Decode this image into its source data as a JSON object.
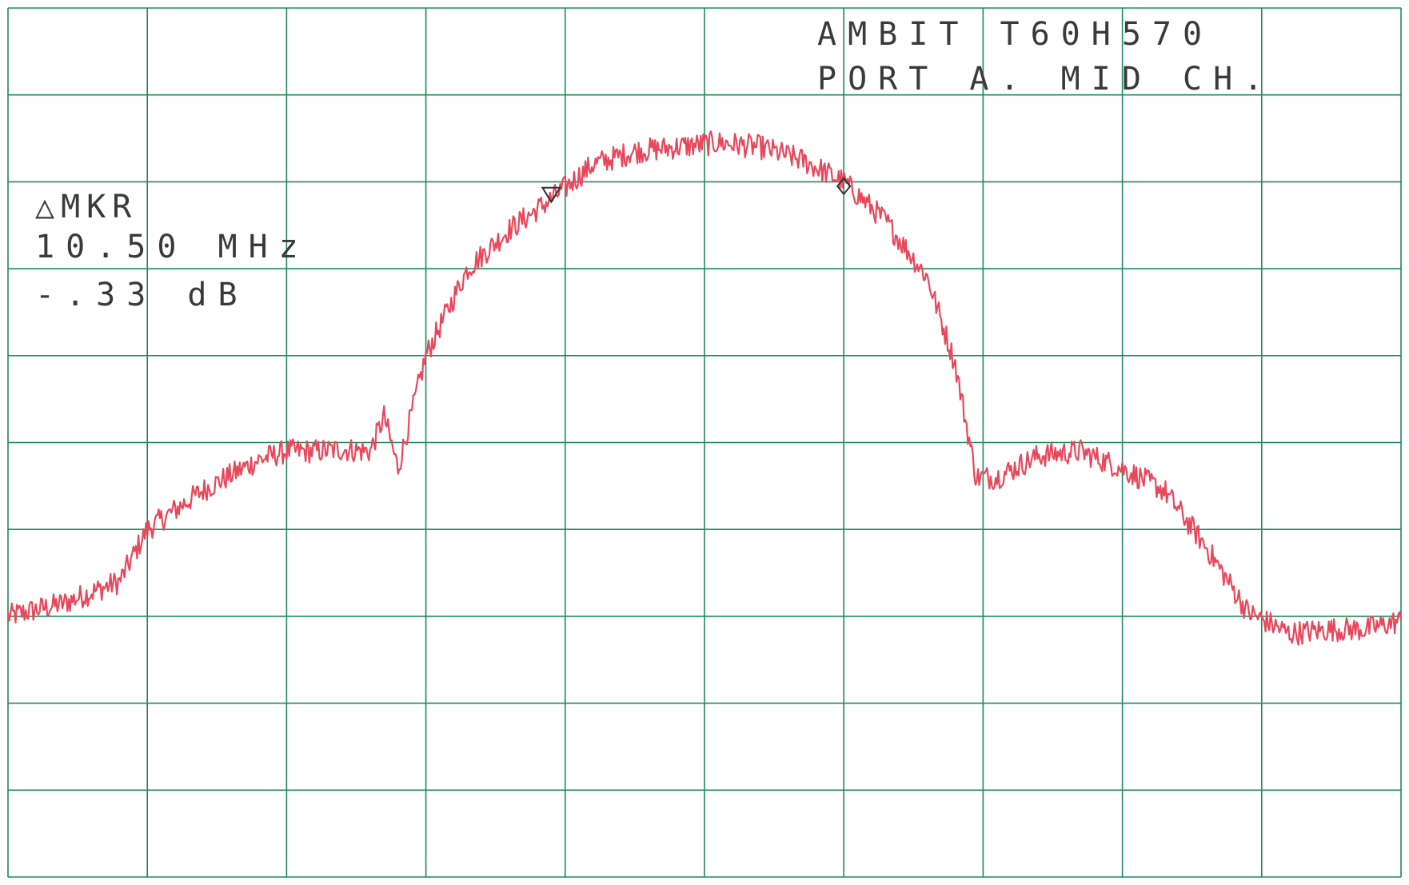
{
  "header": {
    "line1": "AMBIT T60H570",
    "line2": "PORT A. MID CH."
  },
  "marker_readout": {
    "label": "△MKR",
    "frequency": "10.50 MHz",
    "level": "-.33 dB"
  },
  "colors": {
    "grid": "#1f8a5c",
    "trace": "#e8485c",
    "text": "#3a3a3a",
    "paper": "#ffffff"
  },
  "chart_data": {
    "type": "line",
    "title": "AMBIT T60H570 PORT A. MID CH.",
    "xlabel": "",
    "ylabel": "",
    "grid": true,
    "grid_divisions": {
      "x": 10,
      "y": 10
    },
    "xlim": [
      0,
      10
    ],
    "ylim": [
      0,
      10
    ],
    "units": "screen divisions",
    "series": [
      {
        "x": [
          0,
          0.4,
          0.8,
          1.0,
          1.4,
          1.8,
          2.0,
          2.2,
          2.4,
          2.6,
          2.7,
          2.8,
          3.0,
          3.3,
          3.6,
          3.9,
          4.2,
          4.5,
          4.8,
          5.1,
          5.4,
          5.7,
          6.0,
          6.3,
          6.6,
          6.8,
          6.95,
          7.1,
          7.4,
          7.7,
          8.0,
          8.3,
          8.6,
          8.9,
          9.2,
          9.5,
          9.75,
          10.0
        ],
        "values": [
          3.0,
          3.15,
          3.4,
          4.0,
          4.45,
          4.8,
          4.9,
          4.9,
          4.92,
          4.9,
          5.3,
          4.7,
          6.0,
          7.0,
          7.45,
          7.8,
          8.2,
          8.35,
          8.4,
          8.45,
          8.4,
          8.25,
          8.0,
          7.55,
          6.9,
          5.9,
          4.6,
          4.6,
          4.85,
          4.9,
          4.7,
          4.45,
          3.8,
          3.05,
          2.8,
          2.85,
          2.85,
          2.95
        ]
      }
    ],
    "markers": [
      {
        "type": "reference",
        "symbol": "triangle-down",
        "x": 3.9,
        "y": 7.85
      },
      {
        "type": "delta",
        "symbol": "diamond",
        "x": 6.0,
        "y": 7.95
      }
    ]
  }
}
